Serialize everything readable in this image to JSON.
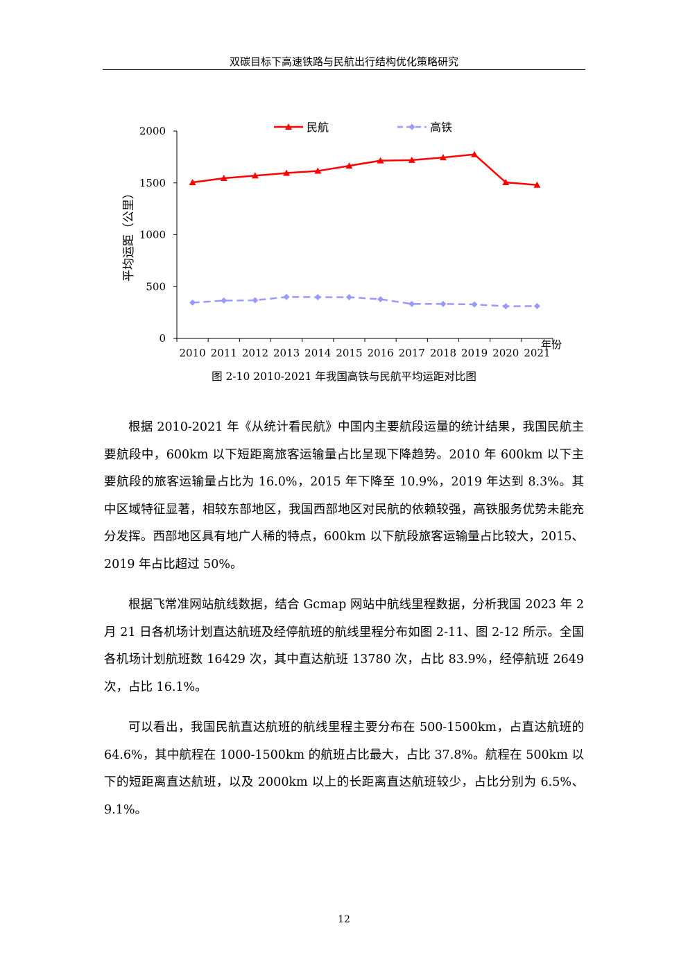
{
  "header": {
    "title": "双碳目标下高速铁路与民航出行结构优化策略研究"
  },
  "figure": {
    "caption": "图 2-10 2010-2021 年我国高铁与民航平均运距对比图"
  },
  "chart_data": {
    "type": "line",
    "title": "",
    "xlabel": "年份",
    "ylabel": "平均运距（公里）",
    "ylim": [
      0,
      2000
    ],
    "yticks": [
      0,
      500,
      1000,
      1500,
      2000
    ],
    "categories": [
      "2010",
      "2011",
      "2012",
      "2013",
      "2014",
      "2015",
      "2016",
      "2017",
      "2018",
      "2019",
      "2020",
      "2021"
    ],
    "legend_position": "top",
    "grid": false,
    "series": [
      {
        "name": "民航",
        "color": "#ff0000",
        "style": "solid",
        "marker": "triangle",
        "values": [
          1505,
          1545,
          1570,
          1595,
          1615,
          1665,
          1715,
          1720,
          1745,
          1775,
          1505,
          1480
        ]
      },
      {
        "name": "高铁",
        "color": "#9999ff",
        "style": "dashed",
        "marker": "diamond",
        "values": [
          345,
          365,
          368,
          400,
          398,
          398,
          378,
          333,
          333,
          328,
          310,
          312
        ]
      }
    ]
  },
  "body": {
    "p1": "根据 2010-2021 年《从统计看民航》中国内主要航段运量的统计结果，我国民航主要航段中，600km 以下短距离旅客运输量占比呈现下降趋势。2010 年 600km 以下主要航段的旅客运输量占比为 16.0%，2015 年下降至 10.9%，2019 年达到 8.3%。其中区域特征显著，相较东部地区，我国西部地区对民航的依赖较强，高铁服务优势未能充分发挥。西部地区具有地广人稀的特点，600km 以下航段旅客运输量占比较大，2015、2019 年占比超过 50%。",
    "p2": "根据飞常准网站航线数据，结合 Gcmap 网站中航线里程数据，分析我国 2023 年 2 月 21 日各机场计划直达航班及经停航班的航线里程分布如图 2-11、图 2-12 所示。全国各机场计划航班数 16429 次，其中直达航班 13780 次，占比 83.9%，经停航班 2649 次，占比 16.1%。",
    "p3": "可以看出，我国民航直达航班的航线里程主要分布在 500-1500km，占直达航班的 64.6%，其中航程在 1000-1500km 的航班占比最大，占比 37.8%。航程在 500km 以下的短距离直达航班，以及 2000km 以上的长距离直达航班较少，占比分别为 6.5%、9.1%。"
  },
  "footer": {
    "page_number": "12"
  }
}
